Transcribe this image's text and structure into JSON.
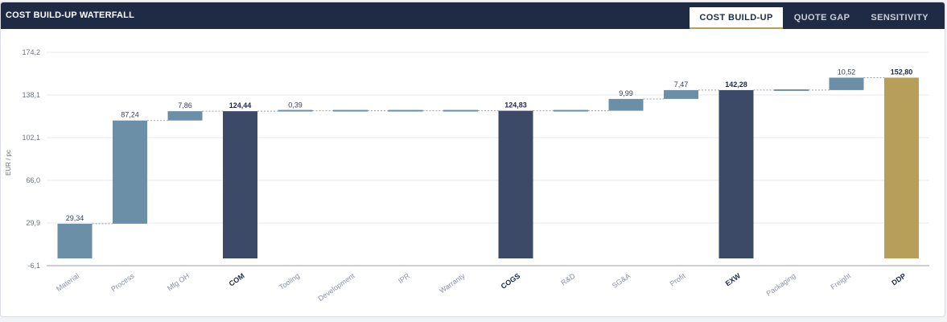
{
  "header": {
    "title": "COST BUILD-UP WATERFALL",
    "tabs": [
      {
        "label": "COST BUILD-UP",
        "active": true
      },
      {
        "label": "QUOTE GAP",
        "active": false
      },
      {
        "label": "SENSITIVITY",
        "active": false
      }
    ]
  },
  "colors": {
    "header_bg": "#1f2a44",
    "step": "#6b8fa6",
    "subtotal": "#3c4a68",
    "total": "#b79f5a",
    "tab_underline": "#b79f5a"
  },
  "chart_data": {
    "type": "bar",
    "subtype": "waterfall",
    "ylabel": "EUR / pc",
    "ylim": [
      -6.1,
      174.2
    ],
    "yticks": [
      "174,2",
      "138,1",
      "102,1",
      "66,0",
      "29,9",
      "-6,1"
    ],
    "grid": true,
    "categories": [
      "Material",
      "Process",
      "Mfg OH",
      "COM",
      "Tooling",
      "Development",
      "IPR",
      "Warranty",
      "COGS",
      "R&D",
      "SG&A",
      "Profit",
      "EXW",
      "Packaging",
      "Freight",
      "DDP"
    ],
    "bars": [
      {
        "category": "Material",
        "kind": "step",
        "start": 0,
        "end": 29.34,
        "label": "29,34"
      },
      {
        "category": "Process",
        "kind": "step",
        "start": 29.34,
        "end": 116.58,
        "label": "87,24"
      },
      {
        "category": "Mfg OH",
        "kind": "step",
        "start": 116.58,
        "end": 124.44,
        "label": "7,86"
      },
      {
        "category": "COM",
        "kind": "subtotal",
        "start": 0,
        "end": 124.44,
        "label": "124,44"
      },
      {
        "category": "Tooling",
        "kind": "step",
        "start": 124.44,
        "end": 124.83,
        "label": "0,39"
      },
      {
        "category": "Development",
        "kind": "step",
        "start": 124.83,
        "end": 124.83,
        "label": ""
      },
      {
        "category": "IPR",
        "kind": "step",
        "start": 124.83,
        "end": 124.83,
        "label": ""
      },
      {
        "category": "Warranty",
        "kind": "step",
        "start": 124.83,
        "end": 124.83,
        "label": ""
      },
      {
        "category": "COGS",
        "kind": "subtotal",
        "start": 0,
        "end": 124.83,
        "label": "124,83"
      },
      {
        "category": "R&D",
        "kind": "step",
        "start": 124.83,
        "end": 124.83,
        "label": ""
      },
      {
        "category": "SG&A",
        "kind": "step",
        "start": 124.83,
        "end": 134.82,
        "label": "9,99"
      },
      {
        "category": "Profit",
        "kind": "step",
        "start": 134.82,
        "end": 142.28,
        "label": "7,47"
      },
      {
        "category": "EXW",
        "kind": "subtotal",
        "start": 0,
        "end": 142.28,
        "label": "142,28"
      },
      {
        "category": "Packaging",
        "kind": "step",
        "start": 142.28,
        "end": 142.28,
        "label": ""
      },
      {
        "category": "Freight",
        "kind": "step",
        "start": 142.28,
        "end": 152.8,
        "label": "10,52"
      },
      {
        "category": "DDP",
        "kind": "total",
        "start": 0,
        "end": 152.8,
        "label": "152,80"
      }
    ]
  }
}
